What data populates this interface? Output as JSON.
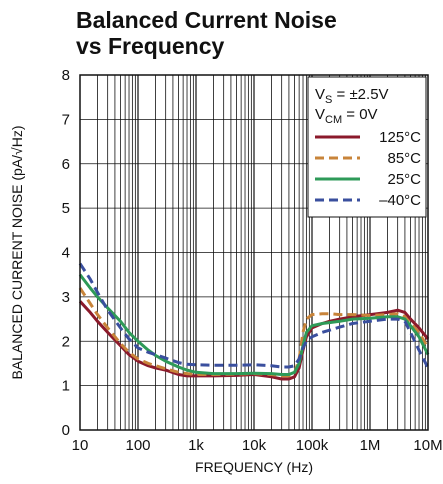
{
  "chart_data": {
    "type": "line",
    "title_line1": "Balanced Current Noise",
    "title_line2": "vs Frequency",
    "xlabel": "FREQUENCY (Hz)",
    "ylabel": "BALANCED CURRENT NOISE (pA/√Hz)",
    "x_scale": "log",
    "xlim": [
      10,
      10000000
    ],
    "ylim": [
      0,
      8
    ],
    "x_tick_labels": [
      "10",
      "100",
      "1k",
      "10k",
      "100k",
      "1M",
      "10M"
    ],
    "y_tick_labels": [
      "0",
      "1",
      "2",
      "3",
      "4",
      "5",
      "6",
      "7",
      "8"
    ],
    "grid": true,
    "legend_position": "top-right",
    "conditions": {
      "vs": "V",
      "vs_sub": "S",
      "vs_val": " = ±2.5V",
      "vcm": "V",
      "vcm_sub": "CM",
      "vcm_val": " = 0V"
    },
    "series": [
      {
        "name": "125°C",
        "color": "#8b1a2b",
        "dash": "solid",
        "x": [
          10,
          15,
          20,
          30,
          50,
          70,
          100,
          150,
          200,
          300,
          500,
          700,
          1000,
          2000,
          5000,
          10000,
          20000,
          30000,
          40000,
          50000,
          60000,
          70000,
          80000,
          100000,
          150000,
          200000,
          300000,
          500000,
          1000000,
          2000000,
          3000000,
          4000000,
          5000000,
          7000000,
          10000000
        ],
        "values": [
          2.9,
          2.65,
          2.45,
          2.2,
          1.9,
          1.7,
          1.55,
          1.45,
          1.4,
          1.35,
          1.25,
          1.22,
          1.22,
          1.22,
          1.23,
          1.25,
          1.2,
          1.15,
          1.15,
          1.2,
          1.4,
          1.8,
          2.1,
          2.3,
          2.4,
          2.45,
          2.5,
          2.55,
          2.6,
          2.65,
          2.7,
          2.65,
          2.5,
          2.3,
          2.05
        ]
      },
      {
        "name": "85°C",
        "color": "#c8843a",
        "dash": "dashed",
        "x": [
          10,
          15,
          20,
          30,
          50,
          70,
          100,
          150,
          200,
          300,
          500,
          700,
          1000,
          2000,
          5000,
          10000,
          20000,
          30000,
          40000,
          50000,
          60000,
          70000,
          80000,
          100000,
          150000,
          200000,
          300000,
          500000,
          1000000,
          2000000,
          3000000,
          4000000,
          5000000,
          7000000,
          10000000
        ],
        "values": [
          3.2,
          2.85,
          2.6,
          2.3,
          1.95,
          1.75,
          1.6,
          1.5,
          1.45,
          1.38,
          1.3,
          1.27,
          1.25,
          1.25,
          1.26,
          1.27,
          1.25,
          1.22,
          1.22,
          1.28,
          1.6,
          2.2,
          2.5,
          2.6,
          2.62,
          2.62,
          2.6,
          2.6,
          2.58,
          2.6,
          2.62,
          2.55,
          2.4,
          2.2,
          1.85
        ]
      },
      {
        "name": "25°C",
        "color": "#2e9a58",
        "dash": "solid",
        "x": [
          10,
          15,
          20,
          30,
          50,
          70,
          100,
          150,
          200,
          300,
          500,
          700,
          1000,
          2000,
          5000,
          10000,
          20000,
          30000,
          40000,
          50000,
          60000,
          70000,
          80000,
          100000,
          150000,
          200000,
          300000,
          500000,
          1000000,
          2000000,
          3000000,
          4000000,
          5000000,
          7000000,
          10000000
        ],
        "values": [
          3.5,
          3.2,
          3.0,
          2.75,
          2.45,
          2.2,
          2.0,
          1.8,
          1.68,
          1.55,
          1.42,
          1.35,
          1.3,
          1.27,
          1.27,
          1.28,
          1.27,
          1.25,
          1.25,
          1.3,
          1.5,
          1.9,
          2.2,
          2.35,
          2.4,
          2.42,
          2.45,
          2.5,
          2.52,
          2.55,
          2.55,
          2.5,
          2.35,
          2.1,
          1.7
        ]
      },
      {
        "name": "–40°C",
        "color": "#3a4f9e",
        "dash": "dashed",
        "x": [
          10,
          15,
          20,
          30,
          50,
          70,
          100,
          150,
          200,
          300,
          500,
          700,
          1000,
          2000,
          5000,
          10000,
          20000,
          30000,
          40000,
          50000,
          60000,
          70000,
          80000,
          100000,
          150000,
          200000,
          300000,
          500000,
          1000000,
          2000000,
          3000000,
          4000000,
          5000000,
          7000000,
          10000000
        ],
        "values": [
          3.75,
          3.4,
          3.1,
          2.7,
          2.3,
          2.05,
          1.85,
          1.75,
          1.7,
          1.62,
          1.52,
          1.48,
          1.47,
          1.46,
          1.46,
          1.47,
          1.45,
          1.42,
          1.42,
          1.45,
          1.6,
          1.85,
          2.0,
          2.1,
          2.2,
          2.25,
          2.32,
          2.4,
          2.45,
          2.5,
          2.5,
          2.45,
          2.2,
          1.8,
          1.4
        ]
      }
    ]
  }
}
